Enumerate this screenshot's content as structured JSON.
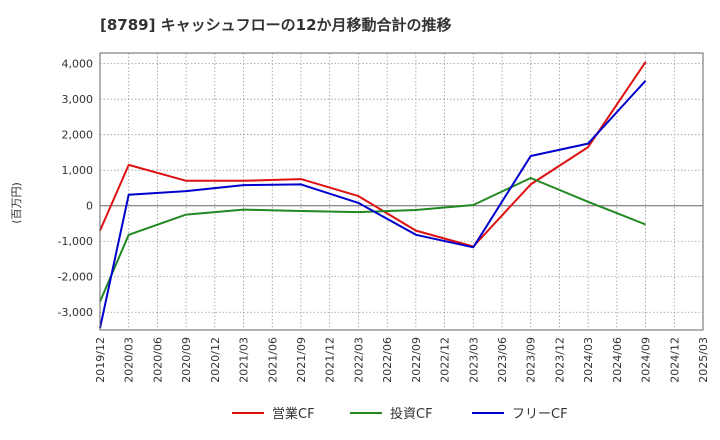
{
  "chart_data": {
    "type": "line",
    "title": "[8789]  キャッシュフローの12か月移動合計の推移",
    "ylabel": "(百万円)",
    "xlabel": "",
    "ylim": [
      -3500,
      4300
    ],
    "yticks": [
      4000,
      3000,
      2000,
      1000,
      0,
      -1000,
      -2000,
      -3000
    ],
    "ytick_labels": [
      "4,000",
      "3,000",
      "2,000",
      "1,000",
      "0",
      "-1,000",
      "-2,000",
      "-3,000"
    ],
    "x_categories": [
      "2019/12",
      "2020/03",
      "2020/06",
      "2020/09",
      "2020/12",
      "2021/03",
      "2021/06",
      "2021/09",
      "2021/12",
      "2022/03",
      "2022/06",
      "2022/09",
      "2022/12",
      "2023/03",
      "2023/06",
      "2023/09",
      "2023/12",
      "2024/03",
      "2024/06",
      "2024/09",
      "2024/12",
      "2025/03"
    ],
    "grid": true,
    "legend_position": "bottom",
    "series": [
      {
        "name": "営業CF",
        "color": "#dd1111",
        "values": [
          -700,
          1150,
          null,
          700,
          null,
          700,
          null,
          750,
          null,
          270,
          null,
          -700,
          null,
          -1150,
          null,
          600,
          null,
          1650,
          null,
          4050,
          null,
          null
        ]
      },
      {
        "name": "投資CF",
        "color": "#228822",
        "values": [
          -2700,
          -820,
          null,
          -250,
          null,
          -110,
          null,
          -150,
          null,
          -180,
          null,
          -120,
          null,
          20,
          null,
          780,
          null,
          110,
          null,
          -530,
          null,
          null
        ]
      },
      {
        "name": "フリーCF",
        "color": "#0000cc",
        "values": [
          -3450,
          310,
          null,
          410,
          null,
          580,
          null,
          600,
          null,
          80,
          null,
          -820,
          null,
          -1170,
          null,
          1400,
          null,
          1750,
          null,
          3520,
          null,
          null
        ]
      }
    ]
  }
}
